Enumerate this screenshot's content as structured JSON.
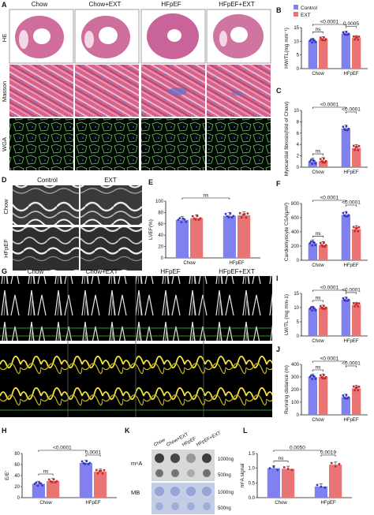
{
  "panel_labels": {
    "A": "A",
    "B": "B",
    "C": "C",
    "D": "D",
    "E": "E",
    "F": "F",
    "G": "G",
    "H": "H",
    "I": "I",
    "J": "J",
    "K": "K",
    "L": "L"
  },
  "panel_a": {
    "columns": [
      "Chow",
      "Chow+EXT",
      "HFpEF",
      "HFpEF+EXT"
    ],
    "rows": [
      "HE",
      "Masson",
      "WGA"
    ]
  },
  "panel_d": {
    "columns": [
      "Control",
      "EXT"
    ],
    "rows": [
      "Chow",
      "HFpEF"
    ]
  },
  "panel_g": {
    "columns": [
      "Chow",
      "Chow+EXT",
      "HFpEF",
      "HFpEF+EXT"
    ]
  },
  "panel_k": {
    "columns": [
      "Chow",
      "Chow+EXT",
      "HFpEF",
      "HFpEF+EXT"
    ],
    "rows": [
      "m⁶A",
      "MB"
    ],
    "loads": [
      "1000ng",
      "500ng",
      "1000ng",
      "500ng"
    ]
  },
  "legend": {
    "control": "Control",
    "ext": "EXT",
    "control_color": "#8080ee",
    "ext_color": "#e87474"
  },
  "chart_data": [
    {
      "id": "B",
      "type": "bar",
      "ylabel": "HW/TL(mg mm⁻¹)",
      "ylim": [
        0,
        15
      ],
      "yticks": [
        "0",
        "5",
        "10",
        "15"
      ],
      "categories": [
        "Chow",
        "HFpEF"
      ],
      "series": [
        {
          "name": "Control",
          "values": [
            10.2,
            12.8
          ]
        },
        {
          "name": "EXT",
          "values": [
            10.8,
            11.2
          ]
        }
      ],
      "annotations": [
        {
          "text": "ns",
          "between": [
            0,
            1
          ]
        },
        {
          "text": "<0.0001",
          "between": [
            0,
            2
          ]
        },
        {
          "text": "0.0005",
          "between": [
            2,
            3
          ]
        }
      ]
    },
    {
      "id": "C",
      "type": "bar",
      "ylabel": "Myocardial fibrosis(fold of Chow)",
      "ylim": [
        0,
        10
      ],
      "yticks": [
        "0",
        "2",
        "4",
        "6",
        "8",
        "10"
      ],
      "categories": [
        "Chow",
        "HFpEF"
      ],
      "series": [
        {
          "name": "Control",
          "values": [
            1.0,
            6.8
          ]
        },
        {
          "name": "EXT",
          "values": [
            1.1,
            3.4
          ]
        }
      ],
      "annotations": [
        {
          "text": "ns",
          "between": [
            0,
            1
          ]
        },
        {
          "text": "<0.0001",
          "between": [
            0,
            2
          ]
        },
        {
          "text": "<0.0001",
          "between": [
            2,
            3
          ]
        }
      ]
    },
    {
      "id": "E",
      "type": "bar",
      "ylabel": "LVEF(%)",
      "ylim": [
        0,
        100
      ],
      "yticks": [
        "0",
        "20",
        "40",
        "60",
        "80",
        "100"
      ],
      "categories": [
        "Chow",
        "HFpEF"
      ],
      "series": [
        {
          "name": "Control",
          "values": [
            67,
            74
          ]
        },
        {
          "name": "EXT",
          "values": [
            70,
            75
          ]
        }
      ],
      "annotations": [
        {
          "text": "ns",
          "between": [
            0,
            2
          ]
        }
      ]
    },
    {
      "id": "F",
      "type": "bar",
      "ylabel": "Cardiomyocyte CSA(μm²)",
      "ylim": [
        0,
        800
      ],
      "yticks": [
        "0",
        "200",
        "400",
        "600",
        "800"
      ],
      "categories": [
        "Chow",
        "HFpEF"
      ],
      "series": [
        {
          "name": "Control",
          "values": [
            240,
            640
          ]
        },
        {
          "name": "EXT",
          "values": [
            215,
            440
          ]
        }
      ],
      "annotations": [
        {
          "text": "ns",
          "between": [
            0,
            1
          ]
        },
        {
          "text": "<0.0001",
          "between": [
            0,
            2
          ]
        },
        {
          "text": "<0.0001",
          "between": [
            2,
            3
          ]
        }
      ]
    },
    {
      "id": "I",
      "type": "bar",
      "ylabel": "LW/TL (mg mm-1)",
      "ylim": [
        0,
        15
      ],
      "yticks": [
        "0",
        "5",
        "10",
        "15"
      ],
      "categories": [
        "Chow",
        "HFpEF"
      ],
      "series": [
        {
          "name": "Control",
          "values": [
            9.6,
            12.8
          ]
        },
        {
          "name": "EXT",
          "values": [
            10.0,
            11.0
          ]
        }
      ],
      "annotations": [
        {
          "text": "ns",
          "between": [
            0,
            1
          ]
        },
        {
          "text": "<0.0001",
          "between": [
            0,
            2
          ]
        },
        {
          "text": "<0.0001",
          "between": [
            2,
            3
          ]
        }
      ]
    },
    {
      "id": "J",
      "type": "bar",
      "ylabel": "Running distance (m)",
      "ylim": [
        0,
        400
      ],
      "yticks": [
        "0",
        "100",
        "200",
        "300",
        "400"
      ],
      "categories": [
        "Chow",
        "HFpEF"
      ],
      "series": [
        {
          "name": "Control",
          "values": [
            300,
            140
          ]
        },
        {
          "name": "EXT",
          "values": [
            300,
            210
          ]
        }
      ],
      "annotations": [
        {
          "text": "ns",
          "between": [
            0,
            1
          ]
        },
        {
          "text": "<0.0001",
          "between": [
            0,
            2
          ]
        },
        {
          "text": "<0.0001",
          "between": [
            2,
            3
          ]
        }
      ]
    },
    {
      "id": "H",
      "type": "bar",
      "ylabel": "E/E'",
      "ylim": [
        0,
        80
      ],
      "yticks": [
        "0",
        "20",
        "40",
        "60",
        "80"
      ],
      "categories": [
        "Chow",
        "HFpEF"
      ],
      "series": [
        {
          "name": "Control",
          "values": [
            25,
            63
          ]
        },
        {
          "name": "EXT",
          "values": [
            30,
            47
          ]
        }
      ],
      "annotations": [
        {
          "text": "ns",
          "between": [
            0,
            1
          ]
        },
        {
          "text": "<0.0001",
          "between": [
            0,
            2
          ]
        },
        {
          "text": "0.0001",
          "between": [
            2,
            3
          ]
        }
      ]
    },
    {
      "id": "L",
      "type": "bar",
      "ylabel": "m⁶A signal",
      "ylim": [
        0,
        1.5
      ],
      "yticks": [
        "0.0",
        "0.5",
        "1.0",
        "1.5"
      ],
      "categories": [
        "Chow",
        "HFpEF"
      ],
      "series": [
        {
          "name": "Control",
          "values": [
            1.0,
            0.38
          ]
        },
        {
          "name": "EXT",
          "values": [
            0.98,
            1.12
          ]
        }
      ],
      "annotations": [
        {
          "text": "ns",
          "between": [
            0,
            1
          ]
        },
        {
          "text": "0.0050",
          "between": [
            0,
            2
          ]
        },
        {
          "text": "0.0019",
          "between": [
            2,
            3
          ]
        }
      ]
    }
  ]
}
